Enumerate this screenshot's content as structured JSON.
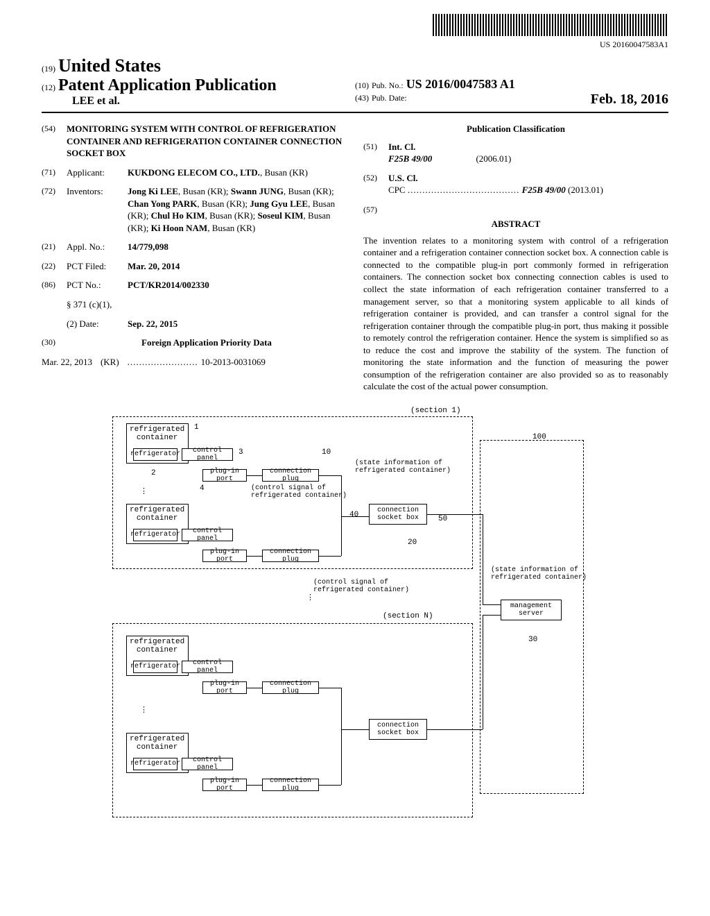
{
  "barcode_text": "US 20160047583A1",
  "header": {
    "code19": "(19)",
    "country": "United States",
    "code12": "(12)",
    "doc_type": "Patent Application Publication",
    "authors": "LEE et al.",
    "code10": "(10)",
    "pub_no_label": "Pub. No.:",
    "pub_no": "US 2016/0047583 A1",
    "code43": "(43)",
    "pub_date_label": "Pub. Date:",
    "pub_date": "Feb. 18, 2016"
  },
  "f54": {
    "code": "(54)",
    "title": "MONITORING SYSTEM WITH CONTROL OF REFRIGERATION CONTAINER AND REFRIGERATION CONTAINER CONNECTION SOCKET BOX"
  },
  "f71": {
    "code": "(71)",
    "label": "Applicant:",
    "value_bold": "KUKDONG ELECOM CO., LTD.",
    "value_rest": ", Busan (KR)"
  },
  "f72": {
    "code": "(72)",
    "label": "Inventors:",
    "v1b": "Jong Ki LEE",
    "v1r": ", Busan (KR); ",
    "v2b": "Swann JUNG",
    "v2r": ", Busan (KR); ",
    "v3b": "Chan Yong PARK",
    "v3r": ", Busan (KR); ",
    "v4b": "Jung Gyu LEE",
    "v4r": ", Busan (KR); ",
    "v5b": "Chul Ho KIM",
    "v5r": ", Busan (KR); ",
    "v6b": "Soseul KIM",
    "v6r": ", Busan (KR); ",
    "v7b": "Ki Hoon NAM",
    "v7r": ", Busan (KR)"
  },
  "f21": {
    "code": "(21)",
    "label": "Appl. No.:",
    "value": "14/779,098"
  },
  "f22": {
    "code": "(22)",
    "label": "PCT Filed:",
    "value": "Mar. 20, 2014"
  },
  "f86": {
    "code": "(86)",
    "label": "PCT No.:",
    "value": "PCT/KR2014/002330",
    "sub1_label": "§ 371 (c)(1),",
    "sub2_label": "(2) Date:",
    "sub2_value": "Sep. 22, 2015"
  },
  "f30": {
    "code": "(30)",
    "heading": "Foreign Application Priority Data",
    "date": "Mar. 22, 2013",
    "country": "(KR)",
    "dots": "........................",
    "number": "10-2013-0031069"
  },
  "classification": {
    "heading": "Publication Classification",
    "f51_code": "(51)",
    "f51_label": "Int. Cl.",
    "f51_class": "F25B 49/00",
    "f51_year": "(2006.01)",
    "f52_code": "(52)",
    "f52_label": "U.S. Cl.",
    "f52_line": "CPC",
    "f52_dots": "......................................",
    "f52_class": "F25B 49/00",
    "f52_year": "(2013.01)"
  },
  "abstract": {
    "code": "(57)",
    "heading": "ABSTRACT",
    "text": "The invention relates to a monitoring system with control of a refrigeration container and a refrigeration container connection socket box. A connection cable is connected to the compatible plug-in port commonly formed in refrigeration containers. The connection socket box connecting connection cables is used to collect the state information of each refrigeration container transferred to a management server, so that a monitoring system applicable to all kinds of refrigeration container is provided, and can transfer a control signal for the refrigeration container through the compatible plug-in port, thus making it possible to remotely control the refrigeration container. Hence the system is simplified so as to reduce the cost and improve the stability of the system. The function of monitoring the state information and the function of measuring the power consumption of the refrigeration container are also provided so as to reasonably calculate the cost of the actual power consumption."
  },
  "diagram": {
    "section1": "(section 1)",
    "sectionN": "(section N)",
    "refrigerated_container": "refrigerated\ncontainer",
    "refrigerator": "refrigerator",
    "control_panel": "control panel",
    "plug_in_port": "plug-in port",
    "connection_plug": "connection plug",
    "connection_socket_box": "connection\nsocket box",
    "management_server": "management\nserver",
    "state_info": "state information of\nrefrigerated container",
    "control_signal": "control signal of\nrefrigerated container",
    "ref_1": "1",
    "ref_2": "2",
    "ref_3": "3",
    "ref_4": "4",
    "ref_10": "10",
    "ref_20": "20",
    "ref_30": "30",
    "ref_40": "40",
    "ref_50": "50",
    "ref_100": "100",
    "vdots": "⋮"
  }
}
